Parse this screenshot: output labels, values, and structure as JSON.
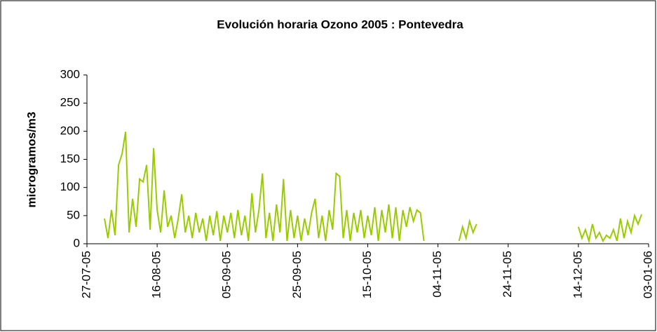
{
  "chart_data": {
    "type": "line",
    "title": "Evolución horaria Ozono 2005 : Pontevedra",
    "y_label": "microgramos/m3",
    "xlim": [
      "27-07-05",
      "03-01-06"
    ],
    "xticks": [
      "27-07-05",
      "16-08-05",
      "05-09-05",
      "25-09-05",
      "15-10-05",
      "04-11-05",
      "24-11-05",
      "14-12-05",
      "03-01-06"
    ],
    "ylim": [
      0,
      300
    ],
    "yticks": [
      0,
      50,
      100,
      150,
      200,
      250,
      300
    ],
    "grid": false,
    "x": [
      "01-08-05",
      "02-08-05",
      "03-08-05",
      "04-08-05",
      "05-08-05",
      "06-08-05",
      "07-08-05",
      "08-08-05",
      "09-08-05",
      "10-08-05",
      "11-08-05",
      "12-08-05",
      "13-08-05",
      "14-08-05",
      "15-08-05",
      "16-08-05",
      "17-08-05",
      "18-08-05",
      "19-08-05",
      "20-08-05",
      "21-08-05",
      "22-08-05",
      "23-08-05",
      "24-08-05",
      "25-08-05",
      "26-08-05",
      "27-08-05",
      "28-08-05",
      "29-08-05",
      "30-08-05",
      "31-08-05",
      "01-09-05",
      "02-09-05",
      "03-09-05",
      "04-09-05",
      "05-09-05",
      "06-09-05",
      "07-09-05",
      "08-09-05",
      "09-09-05",
      "10-09-05",
      "11-09-05",
      "12-09-05",
      "13-09-05",
      "14-09-05",
      "15-09-05",
      "16-09-05",
      "17-09-05",
      "18-09-05",
      "19-09-05",
      "20-09-05",
      "21-09-05",
      "22-09-05",
      "23-09-05",
      "24-09-05",
      "25-09-05",
      "26-09-05",
      "27-09-05",
      "28-09-05",
      "29-09-05",
      "30-09-05",
      "01-10-05",
      "02-10-05",
      "03-10-05",
      "04-10-05",
      "05-10-05",
      "06-10-05",
      "07-10-05",
      "08-10-05",
      "09-10-05",
      "10-10-05",
      "11-10-05",
      "12-10-05",
      "13-10-05",
      "14-10-05",
      "15-10-05",
      "16-10-05",
      "17-10-05",
      "18-10-05",
      "19-10-05",
      "20-10-05",
      "21-10-05",
      "22-10-05",
      "23-10-05",
      "24-10-05",
      "25-10-05",
      "26-10-05",
      "27-10-05",
      "28-10-05",
      "29-10-05",
      "30-10-05",
      "31-10-05",
      "05-11-05",
      "10-11-05",
      "11-11-05",
      "12-11-05",
      "13-11-05",
      "14-11-05",
      "15-11-05",
      "01-12-05",
      "14-12-05",
      "15-12-05",
      "16-12-05",
      "17-12-05",
      "18-12-05",
      "19-12-05",
      "20-12-05",
      "21-12-05",
      "22-12-05",
      "23-12-05",
      "24-12-05",
      "25-12-05",
      "26-12-05",
      "27-12-05",
      "28-12-05",
      "29-12-05",
      "30-12-05",
      "31-12-05",
      "01-01-06"
    ],
    "series": [
      {
        "name": "Ozono",
        "color": "#99cc00",
        "values": [
          45,
          10,
          60,
          15,
          140,
          160,
          199,
          20,
          80,
          30,
          115,
          110,
          140,
          25,
          170,
          60,
          20,
          95,
          30,
          50,
          10,
          45,
          88,
          20,
          50,
          10,
          55,
          20,
          45,
          5,
          50,
          15,
          58,
          5,
          50,
          20,
          55,
          10,
          60,
          15,
          50,
          5,
          90,
          20,
          60,
          125,
          10,
          55,
          5,
          70,
          20,
          115,
          5,
          60,
          10,
          50,
          5,
          45,
          15,
          55,
          80,
          10,
          50,
          5,
          60,
          25,
          125,
          120,
          10,
          60,
          5,
          55,
          20,
          60,
          10,
          50,
          15,
          65,
          5,
          60,
          20,
          70,
          10,
          65,
          5,
          60,
          30,
          65,
          40,
          60,
          55,
          5,
          null,
          5,
          30,
          10,
          40,
          20,
          35,
          null,
          30,
          10,
          25,
          5,
          35,
          10,
          20,
          5,
          15,
          10,
          25,
          5,
          45,
          10,
          40,
          20,
          50,
          35,
          52
        ]
      }
    ]
  }
}
